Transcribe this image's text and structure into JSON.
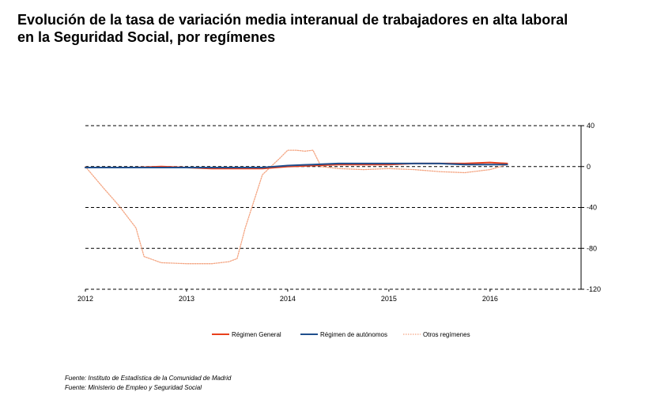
{
  "title": {
    "line1": "Evolución de la tasa de variación media interanual de trabajadores en alta laboral",
    "line2": "en la Seguridad Social, por  regímenes"
  },
  "sources": [
    "Fuente: Instituto de Estadística de la Comunidad de Madrid",
    "Fuente: Ministerio de Empleo y Seguridad Social"
  ],
  "chart_data": {
    "type": "line",
    "title": "Evolución de la tasa de variación media interanual de trabajadores en alta laboral en la Seguridad Social, por  regímenes",
    "xlabel": "",
    "ylabel": "",
    "xlim": [
      2012.0,
      2016.9
    ],
    "ylim": [
      -120,
      40
    ],
    "x_ticks": [
      "2012",
      "2013",
      "2014",
      "2015",
      "2016"
    ],
    "y_ticks": [
      40,
      0,
      -40,
      -80,
      -120
    ],
    "y_axis_side": "right",
    "grid": "horizontal dashed",
    "legend_position": "bottom",
    "series": [
      {
        "name": "Régimen General",
        "color": "#e8401c",
        "style": "solid",
        "x": [
          2012.0,
          2012.25,
          2012.5,
          2012.75,
          2013.0,
          2013.25,
          2013.5,
          2013.75,
          2014.0,
          2014.25,
          2014.5,
          2014.75,
          2015.0,
          2015.25,
          2015.5,
          2015.75,
          2016.0,
          2016.17
        ],
        "y": [
          -1,
          -1,
          -1,
          0,
          -1,
          -2,
          -2,
          -2,
          0,
          1,
          2,
          2,
          2,
          3,
          3,
          3,
          4,
          3
        ]
      },
      {
        "name": "Régimen de autónomos",
        "color": "#1f4e8c",
        "style": "solid",
        "x": [
          2012.0,
          2012.25,
          2012.5,
          2012.75,
          2013.0,
          2013.25,
          2013.5,
          2013.75,
          2014.0,
          2014.25,
          2014.5,
          2014.75,
          2015.0,
          2015.25,
          2015.5,
          2015.75,
          2016.0,
          2016.17
        ],
        "y": [
          -1,
          -1,
          -1,
          -1,
          -1,
          -1,
          -1,
          -1,
          1,
          2,
          3,
          3,
          3,
          3,
          3,
          2,
          2,
          2
        ]
      },
      {
        "name": "Otros regímenes",
        "color": "#f4a582",
        "style": "dotted",
        "x": [
          2012.0,
          2012.17,
          2012.33,
          2012.5,
          2012.58,
          2012.75,
          2013.0,
          2013.25,
          2013.42,
          2013.5,
          2013.58,
          2013.75,
          2013.92,
          2014.0,
          2014.08,
          2014.17,
          2014.25,
          2014.33,
          2014.5,
          2014.75,
          2015.0,
          2015.25,
          2015.5,
          2015.75,
          2016.0,
          2016.17
        ],
        "y": [
          0,
          -20,
          -38,
          -60,
          -88,
          -94,
          -95,
          -95,
          -93,
          -90,
          -60,
          -8,
          8,
          16,
          16,
          15,
          16,
          0,
          -2,
          -3,
          -2,
          -3,
          -5,
          -6,
          -3,
          2
        ]
      }
    ]
  }
}
